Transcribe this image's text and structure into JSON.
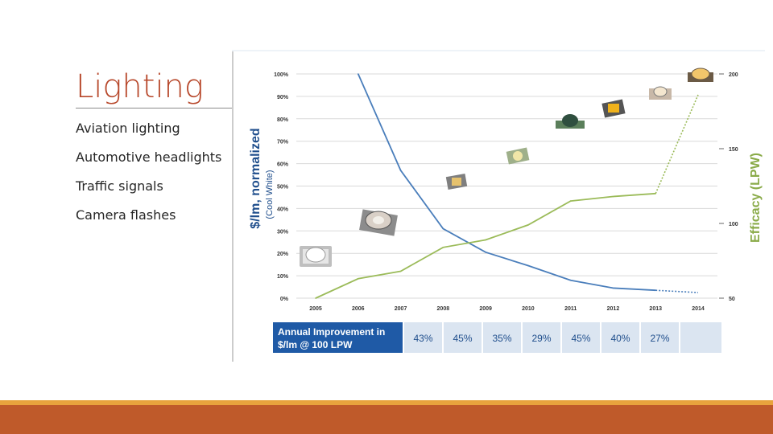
{
  "slide": {
    "title": "Lighting",
    "bullets": [
      "Aviation lighting",
      "Automotive headlights",
      "Traffic signals",
      "Camera flashes"
    ]
  },
  "colors": {
    "accent": "#b7472a",
    "band_orange": "#e8a33d",
    "band_red": "#bf5a2a",
    "cost_line": "#4a7ebb",
    "efficacy_line": "#9bbb59",
    "table_header": "#1f5aa6",
    "table_cells": "#dbe5f1"
  },
  "chart_data": {
    "type": "line",
    "title": "",
    "ylabel": "$/lm, normalized",
    "ylabel_sub": "(Cool White)",
    "y2label": "Efficacy (LPW)",
    "x": [
      "2005",
      "2006",
      "2007",
      "2008",
      "2009",
      "2010",
      "2011",
      "2012",
      "2013",
      "2014"
    ],
    "yticks": [
      "0%",
      "10%",
      "20%",
      "30%",
      "40%",
      "50%",
      "60%",
      "70%",
      "80%",
      "90%",
      "100%"
    ],
    "y2ticks": [
      "50",
      "100",
      "150",
      "200"
    ],
    "ylim": [
      0,
      100
    ],
    "y2lim": [
      50,
      200
    ],
    "grid": true,
    "series": [
      {
        "name": "$/lm, normalized",
        "axis": "left",
        "points": [
          [
            2006,
            100
          ],
          [
            2007,
            57
          ],
          [
            2008,
            31
          ],
          [
            2009,
            20.5
          ],
          [
            2010,
            14.5
          ],
          [
            2011,
            8
          ],
          [
            2012,
            4.5
          ],
          [
            2013,
            3.5
          ]
        ],
        "projected": [
          [
            2013,
            3.5
          ],
          [
            2014,
            2.5
          ]
        ]
      },
      {
        "name": "Efficacy (LPW)",
        "axis": "right",
        "points": [
          [
            2005,
            50
          ],
          [
            2006,
            63
          ],
          [
            2007,
            68
          ],
          [
            2008,
            84
          ],
          [
            2009,
            89
          ],
          [
            2010,
            99
          ],
          [
            2011,
            115
          ],
          [
            2012,
            118
          ],
          [
            2013,
            120
          ]
        ],
        "projected": [
          [
            2013,
            120
          ],
          [
            2014,
            186
          ]
        ]
      }
    ],
    "table": {
      "header": "Annual Improvement in $/lm @ 100 LPW",
      "header_line1": "Annual Improvement in",
      "header_line2": "$/lm @ 100 LPW",
      "values": [
        "43%",
        "45%",
        "35%",
        "29%",
        "45%",
        "40%",
        "27%",
        ""
      ]
    }
  }
}
